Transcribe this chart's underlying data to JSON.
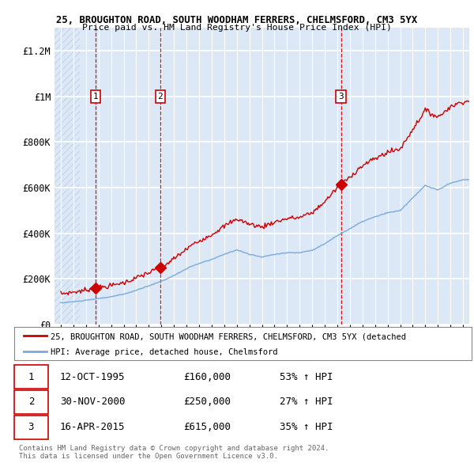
{
  "title1": "25, BROUGHTON ROAD, SOUTH WOODHAM FERRERS, CHELMSFORD, CM3 5YX",
  "title2": "Price paid vs. HM Land Registry's House Price Index (HPI)",
  "transactions": [
    {
      "num": 1,
      "date_label": "12-OCT-1995",
      "date_x": 1995.79,
      "price": 160000,
      "pct": "53% ↑ HPI"
    },
    {
      "num": 2,
      "date_label": "30-NOV-2000",
      "date_x": 2000.92,
      "price": 250000,
      "pct": "27% ↑ HPI"
    },
    {
      "num": 3,
      "date_label": "16-APR-2015",
      "date_x": 2015.29,
      "price": 615000,
      "pct": "35% ↑ HPI"
    }
  ],
  "legend_line1": "25, BROUGHTON ROAD, SOUTH WOODHAM FERRERS, CHELMSFORD, CM3 5YX (detached",
  "legend_line2": "HPI: Average price, detached house, Chelmsford",
  "footnote1": "Contains HM Land Registry data © Crown copyright and database right 2024.",
  "footnote2": "This data is licensed under the Open Government Licence v3.0.",
  "line_color_red": "#cc0000",
  "line_color_blue": "#7aabdc",
  "marker_color_red": "#cc0000",
  "bg_color": "#dce8f5",
  "hatch_bg": "#c8d8ec",
  "grid_color": "#ffffff",
  "ylim": [
    0,
    1300000
  ],
  "xlim": [
    1992.5,
    2025.5
  ],
  "yticks": [
    0,
    200000,
    400000,
    600000,
    800000,
    1000000,
    1200000
  ],
  "ytick_labels": [
    "£0",
    "£200K",
    "£400K",
    "£600K",
    "£800K",
    "£1M",
    "£1.2M"
  ],
  "xticks": [
    1993,
    1994,
    1995,
    1996,
    1997,
    1998,
    1999,
    2000,
    2001,
    2002,
    2003,
    2004,
    2005,
    2006,
    2007,
    2008,
    2009,
    2010,
    2011,
    2012,
    2013,
    2014,
    2015,
    2016,
    2017,
    2018,
    2019,
    2020,
    2021,
    2022,
    2023,
    2024,
    2025
  ]
}
